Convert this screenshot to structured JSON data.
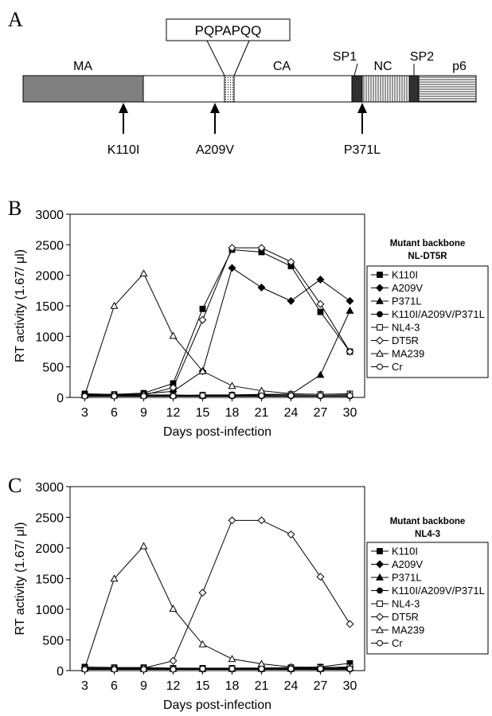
{
  "panel_a": {
    "label": "A",
    "motif": "PQPAPQQ",
    "domains": {
      "ma": "MA",
      "ca": "CA",
      "sp1": "SP1",
      "nc": "NC",
      "sp2": "SP2",
      "p6": "p6"
    },
    "mutations": {
      "m1": "K110I",
      "m2": "A209V",
      "m3": "P371L"
    },
    "colors": {
      "ma_fill": "#808080",
      "spacer_fill": "#303030"
    }
  },
  "chart_data": [
    {
      "panel": "B",
      "type": "line",
      "xlabel": "Days post-infection",
      "ylabel": "RT activity (1.67/ μl)",
      "ylim": [
        0,
        3000
      ],
      "yticks": [
        "0",
        "500",
        "1000",
        "1500",
        "2000",
        "2500",
        "3000"
      ],
      "x": [
        3,
        6,
        9,
        12,
        15,
        18,
        21,
        24,
        27,
        30
      ],
      "xticks": [
        "3",
        "6",
        "9",
        "12",
        "15",
        "18",
        "21",
        "24",
        "27",
        "30"
      ],
      "legend": {
        "title1": "Mutant backbone",
        "title2": "NL-DT5R",
        "placement": "right"
      },
      "series": [
        {
          "name": "K110I",
          "marker": "square-filled",
          "values": [
            60,
            50,
            70,
            230,
            1450,
            2420,
            2380,
            2150,
            1400,
            750
          ]
        },
        {
          "name": "A209V",
          "marker": "diamond-filled",
          "values": [
            40,
            40,
            60,
            100,
            430,
            2120,
            1800,
            1580,
            1930,
            1580
          ]
        },
        {
          "name": "P371L",
          "marker": "triangle-filled",
          "values": [
            50,
            40,
            40,
            40,
            30,
            40,
            40,
            50,
            370,
            1420
          ]
        },
        {
          "name": "K110I/A209V/P371L",
          "marker": "circle-filled",
          "values": [
            20,
            20,
            20,
            20,
            20,
            20,
            20,
            20,
            20,
            20
          ]
        },
        {
          "name": "NL4-3",
          "marker": "square-open",
          "values": [
            30,
            30,
            30,
            30,
            40,
            40,
            50,
            50,
            50,
            60
          ]
        },
        {
          "name": "DT5R",
          "marker": "diamond-open",
          "values": [
            40,
            40,
            40,
            160,
            1270,
            2450,
            2450,
            2220,
            1530,
            750
          ]
        },
        {
          "name": "MA239",
          "marker": "triangle-open",
          "values": [
            40,
            1500,
            2030,
            1010,
            430,
            190,
            110,
            60,
            50,
            50
          ]
        },
        {
          "name": "Cr",
          "marker": "circle-open",
          "values": [
            20,
            20,
            20,
            20,
            30,
            30,
            30,
            30,
            30,
            30
          ]
        }
      ]
    },
    {
      "panel": "C",
      "type": "line",
      "xlabel": "Days post-infection",
      "ylabel": "RT activity (1.67/ μl)",
      "ylim": [
        0,
        3000
      ],
      "yticks": [
        "0",
        "500",
        "1000",
        "1500",
        "2000",
        "2500",
        "3000"
      ],
      "x": [
        3,
        6,
        9,
        12,
        15,
        18,
        21,
        24,
        27,
        30
      ],
      "xticks": [
        "3",
        "6",
        "9",
        "12",
        "15",
        "18",
        "21",
        "24",
        "27",
        "30"
      ],
      "legend": {
        "title1": "Mutant backbone",
        "title2": "NL4-3",
        "placement": "right"
      },
      "series": [
        {
          "name": "K110I",
          "marker": "square-filled",
          "values": [
            60,
            50,
            50,
            40,
            40,
            40,
            40,
            50,
            60,
            120
          ]
        },
        {
          "name": "A209V",
          "marker": "diamond-filled",
          "values": [
            40,
            40,
            40,
            30,
            30,
            30,
            30,
            30,
            40,
            60
          ]
        },
        {
          "name": "P371L",
          "marker": "triangle-filled",
          "values": [
            40,
            30,
            30,
            30,
            30,
            30,
            30,
            30,
            30,
            40
          ]
        },
        {
          "name": "K110I/A209V/P371L",
          "marker": "circle-filled",
          "values": [
            20,
            20,
            20,
            20,
            20,
            20,
            20,
            20,
            20,
            20
          ]
        },
        {
          "name": "NL4-3",
          "marker": "square-open",
          "values": [
            30,
            30,
            30,
            30,
            30,
            40,
            40,
            40,
            50,
            60
          ]
        },
        {
          "name": "DT5R",
          "marker": "diamond-open",
          "values": [
            40,
            40,
            40,
            160,
            1270,
            2450,
            2450,
            2220,
            1530,
            760
          ]
        },
        {
          "name": "MA239",
          "marker": "triangle-open",
          "values": [
            40,
            1500,
            2030,
            1010,
            430,
            190,
            110,
            60,
            50,
            50
          ]
        },
        {
          "name": "Cr",
          "marker": "circle-open",
          "values": [
            20,
            20,
            20,
            20,
            30,
            30,
            30,
            30,
            30,
            30
          ]
        }
      ]
    }
  ],
  "panel_labels": {
    "b": "B",
    "c": "C"
  }
}
